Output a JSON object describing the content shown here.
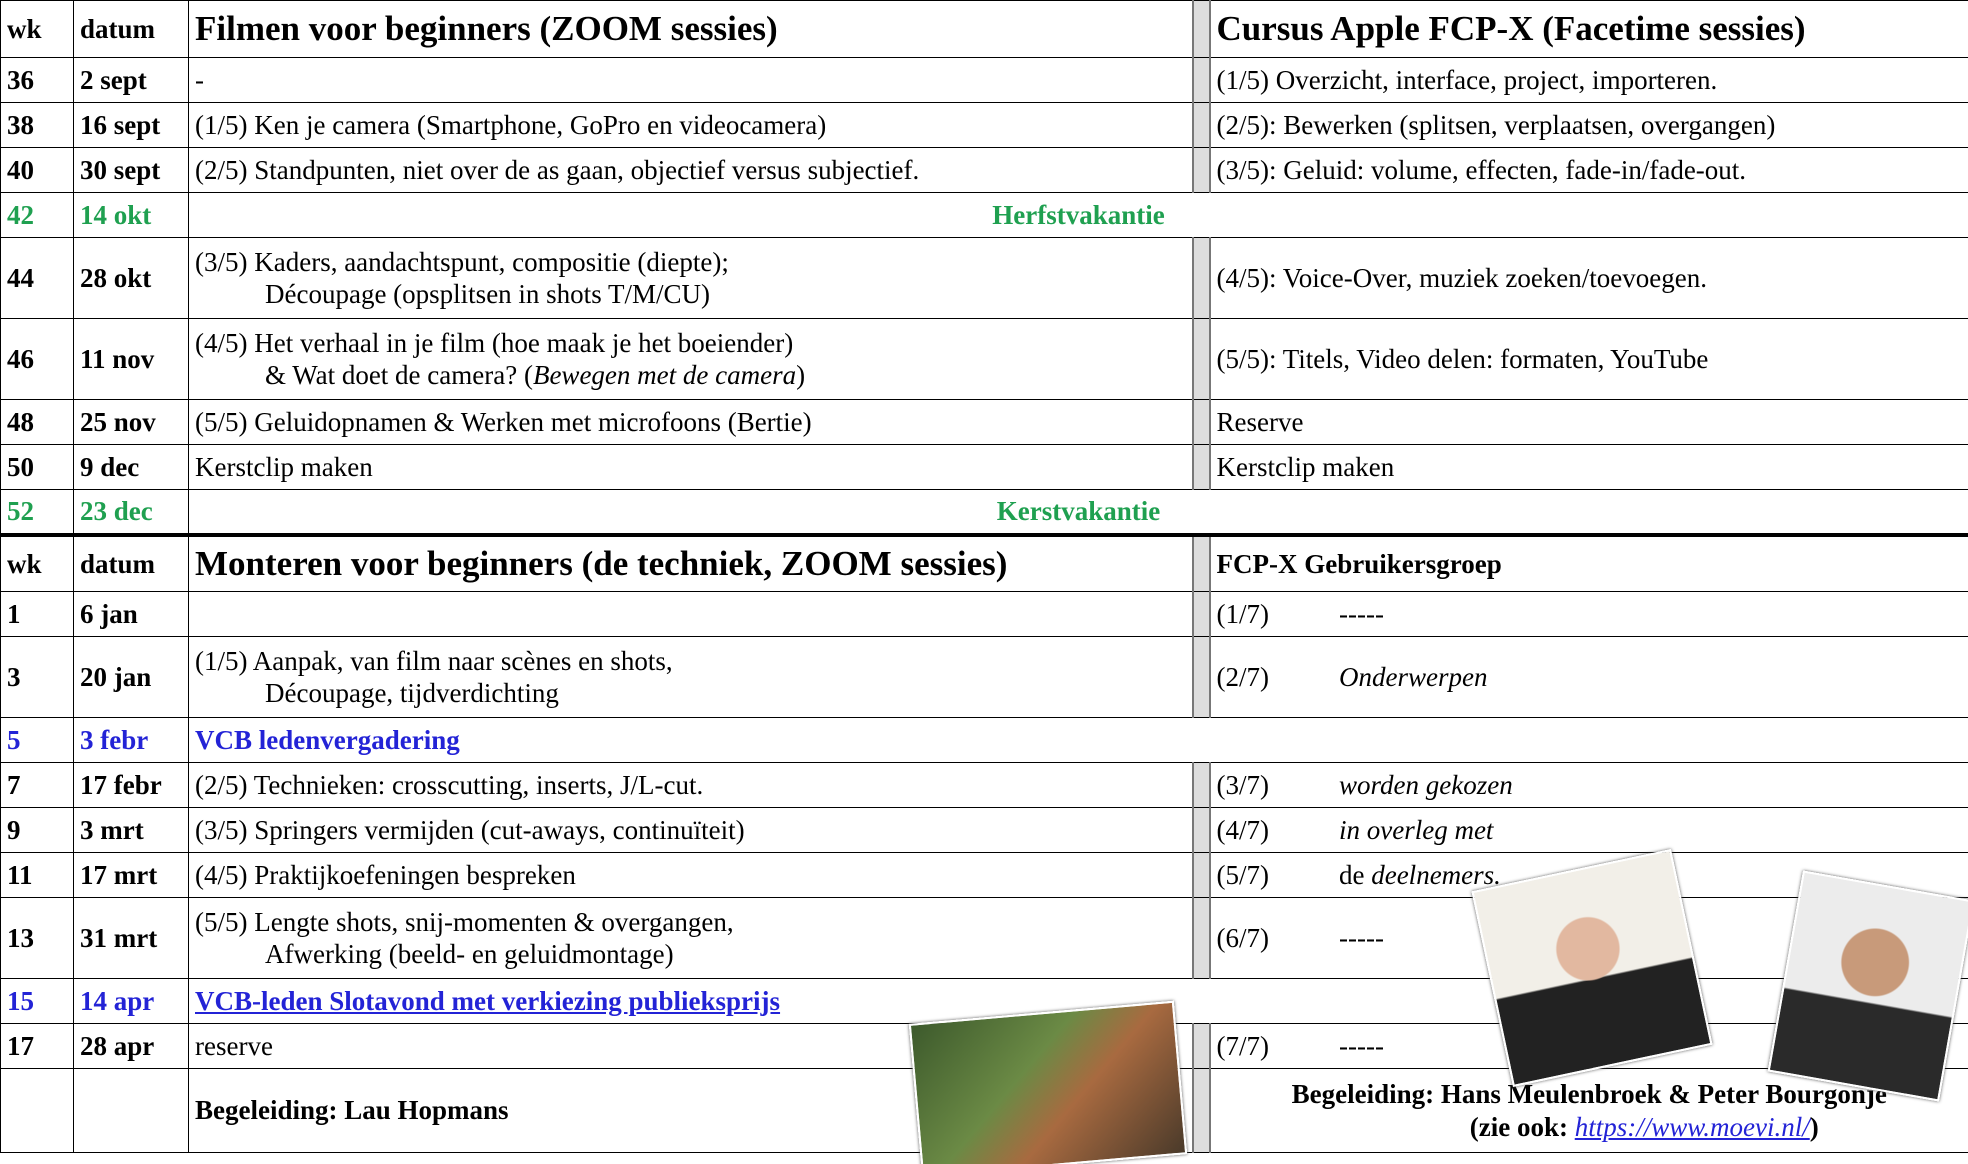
{
  "rows": [
    {
      "kind": "header",
      "wk": "wk",
      "datum": "datum",
      "left": "Filmen voor beginners (ZOOM sessies)",
      "right": "Cursus Apple FCP-X (Facetime sessies)"
    },
    {
      "wk": "36",
      "datum": "2 sept",
      "left": [
        [
          "-"
        ]
      ],
      "right": [
        [
          "(1/5) Overzicht, interface, project, importeren."
        ]
      ]
    },
    {
      "wk": "38",
      "datum": "16 sept",
      "left": [
        [
          "(1/5) Ken je camera (Smartphone, GoPro en videocamera)"
        ]
      ],
      "right": [
        [
          "(2/5): Bewerken (splitsen, verplaatsen, overgangen)"
        ]
      ]
    },
    {
      "wk": "40",
      "datum": "30 sept",
      "left": [
        [
          "(2/5) Standpunten, niet over de as gaan, objectief versus subjectief."
        ]
      ],
      "right": [
        [
          "(3/5): Geluid: volume, effecten, fade-in/fade-out."
        ]
      ]
    },
    {
      "kind": "vacation",
      "wk": "42",
      "datum": "14 okt",
      "text": "Herfstvakantie"
    },
    {
      "wk": "44",
      "datum": "28 okt",
      "left": [
        [
          "(3/5) Kaders, aandachtspunt, compositie (diepte);"
        ],
        [
          "Découpage (opsplitsen in shots T/M/CU)"
        ]
      ],
      "right": [
        [
          "(4/5): Voice-Over, muziek zoeken/toevoegen."
        ]
      ]
    },
    {
      "wk": "46",
      "datum": "11 nov",
      "left": [
        [
          "(4/5) Het verhaal in je film (hoe maak je het boeiender)"
        ],
        [
          "& Wat doet de camera? (",
          {
            "text": "Bewegen met de camera",
            "italic": true
          },
          ")"
        ]
      ],
      "right": [
        [
          "(5/5): Titels, Video delen: formaten, YouTube"
        ]
      ]
    },
    {
      "wk": "48",
      "datum": "25 nov",
      "left": [
        [
          "(5/5) Geluidopnamen & Werken met microfoons (Bertie)"
        ]
      ],
      "right": [
        [
          "Reserve"
        ]
      ]
    },
    {
      "wk": "50",
      "datum": "9 dec",
      "left": [
        [
          "Kerstclip maken"
        ]
      ],
      "right": [
        [
          "Kerstclip maken"
        ]
      ]
    },
    {
      "kind": "vacation",
      "wk": "52",
      "datum": "23 dec",
      "text": "Kerstvakantie"
    },
    {
      "kind": "header",
      "thick": true,
      "small_right": true,
      "wk": "wk",
      "datum": "datum",
      "left": "Monteren voor beginners (de techniek, ZOOM sessies)",
      "right": "FCP-X Gebruikersgroep"
    },
    {
      "wk": "1",
      "datum": "6 jan",
      "spaced": true,
      "right": [
        [
          "(1/7)",
          "-----"
        ]
      ]
    },
    {
      "wk": "3",
      "datum": "20 jan",
      "spaced": true,
      "left": [
        [
          "(1/5) Aanpak, van film naar scènes en shots,"
        ],
        [
          "Découpage, tijdverdichting"
        ]
      ],
      "right": [
        [
          "(2/7)",
          {
            "text": "Onderwerpen",
            "italic": true
          }
        ]
      ]
    },
    {
      "kind": "event",
      "wk": "5",
      "datum": "3 febr",
      "text": "VCB ledenvergadering"
    },
    {
      "wk": "7",
      "datum": "17 febr",
      "spaced": true,
      "left": [
        [
          "(2/5) Technieken: crosscutting, inserts, J/L-cut."
        ]
      ],
      "right": [
        [
          "(3/7)",
          {
            "text": "worden gekozen",
            "italic": true
          }
        ]
      ]
    },
    {
      "wk": "9",
      "datum": "3 mrt",
      "spaced": true,
      "left": [
        [
          "(3/5) Springers vermijden (cut-aways, continuïteit)"
        ]
      ],
      "right": [
        [
          "(4/7)",
          {
            "text": "in overleg met",
            "italic": true
          }
        ]
      ]
    },
    {
      "wk": "11",
      "datum": "17 mrt",
      "spaced": true,
      "left": [
        [
          "(4/5) Praktijkoefeningen bespreken"
        ]
      ],
      "right": [
        [
          "(5/7)",
          "de ",
          {
            "text": "deelnemers.",
            "italic": true
          }
        ]
      ]
    },
    {
      "wk": "13",
      "datum": "31 mrt",
      "spaced": true,
      "left": [
        [
          "(5/5) Lengte shots, snij-momenten & overgangen,"
        ],
        [
          "Afwerking (beeld- en geluidmontage)"
        ]
      ],
      "right": [
        [
          "(6/7)",
          "-----"
        ]
      ]
    },
    {
      "kind": "event",
      "link": true,
      "wk": "15",
      "datum": "14 apr",
      "text": "VCB-leden Slotavond met verkiezing publieksprijs"
    },
    {
      "wk": "17",
      "datum": "28 apr",
      "spaced": true,
      "left": [
        [
          "reserve"
        ]
      ],
      "right": [
        [
          "(7/7)",
          "-----"
        ]
      ]
    },
    {
      "kind": "footer",
      "left": [
        [
          "Begeleiding: Lau Hopmans"
        ]
      ],
      "right": [
        [
          "Begeleiding: Hans Meulenbroek & Peter Bourgonje"
        ],
        [
          "(zie ook: ",
          {
            "text": "https://www.moevi.nl/",
            "link": true
          },
          ")"
        ]
      ]
    }
  ]
}
